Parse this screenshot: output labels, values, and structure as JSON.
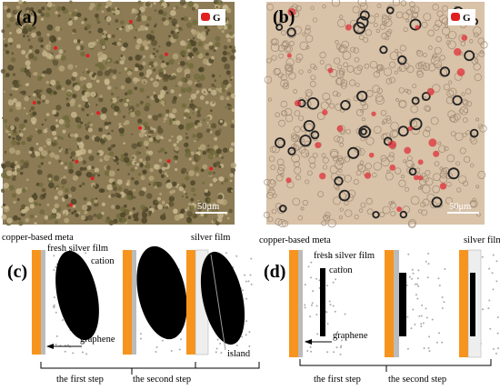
{
  "panels": {
    "a": {
      "label": "(a)",
      "legend": "G",
      "scale": "50μm"
    },
    "b": {
      "label": "(b)",
      "legend": "G",
      "scale": "50μm"
    },
    "c": {
      "label": "(c)",
      "substrate": "copper-based meta",
      "fresh_film": "fresh silver film",
      "cation": "cation",
      "silver_film": "silver film",
      "graphene": "graphene",
      "island": "island",
      "step1": "the first step",
      "step2": "the second step"
    },
    "d": {
      "label": "(d)",
      "substrate": "copper-based meta",
      "fresh_film": "fresh silver film",
      "cation": "cation",
      "silver_film": "silver film",
      "graphene": "graphene",
      "step1": "the first step",
      "step2": "the second step"
    }
  }
}
